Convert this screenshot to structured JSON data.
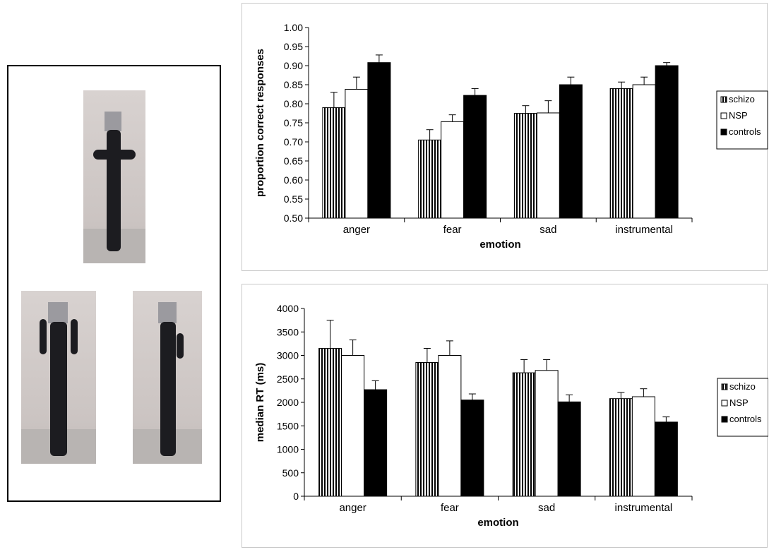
{
  "chart_data": [
    {
      "type": "bar",
      "categories": [
        "anger",
        "fear",
        "sad",
        "instrumental"
      ],
      "series": [
        {
          "name": "schizo",
          "values": [
            0.79,
            0.705,
            0.775,
            0.84
          ],
          "errors": [
            0.04,
            0.027,
            0.02,
            0.017
          ]
        },
        {
          "name": "NSP",
          "values": [
            0.838,
            0.753,
            0.776,
            0.85
          ],
          "errors": [
            0.032,
            0.018,
            0.032,
            0.02
          ]
        },
        {
          "name": "controls",
          "values": [
            0.908,
            0.822,
            0.85,
            0.9
          ],
          "errors": [
            0.02,
            0.018,
            0.02,
            0.008
          ]
        }
      ],
      "xlabel": "emotion",
      "ylabel": "proportion correct responses",
      "ylim": [
        0.5,
        1.0
      ],
      "yticks": [
        "0.50",
        "0.55",
        "0.60",
        "0.65",
        "0.70",
        "0.75",
        "0.80",
        "0.85",
        "0.90",
        "0.95",
        "1.00"
      ],
      "legend": "right",
      "grid": false
    },
    {
      "type": "bar",
      "categories": [
        "anger",
        "fear",
        "sad",
        "instrumental"
      ],
      "series": [
        {
          "name": "schizo",
          "values": [
            3150,
            2850,
            2630,
            2080
          ],
          "errors": [
            600,
            300,
            280,
            130
          ]
        },
        {
          "name": "NSP",
          "values": [
            3000,
            3000,
            2680,
            2120
          ],
          "errors": [
            330,
            310,
            230,
            170
          ]
        },
        {
          "name": "controls",
          "values": [
            2270,
            2050,
            2010,
            1580
          ],
          "errors": [
            190,
            130,
            150,
            110
          ]
        }
      ],
      "xlabel": "emotion",
      "ylabel": "median RT (ms)",
      "ylim": [
        0,
        4000
      ],
      "yticks": [
        "0",
        "500",
        "1000",
        "1500",
        "2000",
        "2500",
        "3000",
        "3500",
        "4000"
      ],
      "legend": "right",
      "grid": false
    }
  ],
  "colors": {
    "schizo": "#000000",
    "NSP": "#ffffff",
    "controls": "#000000"
  },
  "stimuli": {
    "photo_count": 3
  }
}
